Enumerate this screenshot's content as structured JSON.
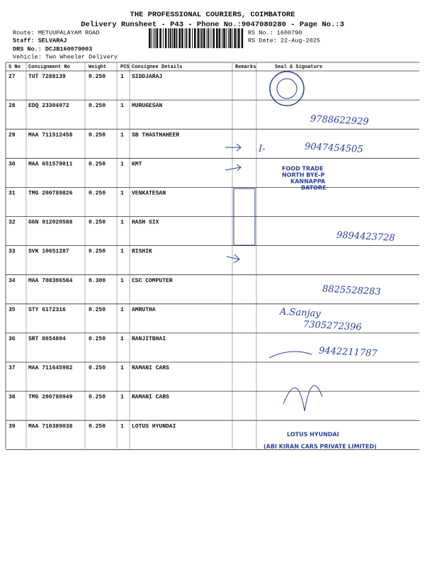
{
  "header": {
    "title": "THE PROFESSIONAL COURIERS, COIMBATORE",
    "subtitle": "Delivery Runsheet - P43 - Phone No.:9047080280 - Page No.:3",
    "route": "Route: METUUPALAYAM ROAD",
    "staff": "Staff: SELVARAJ",
    "drs_no": "DRS No.: DCJB160079003",
    "vehicle": "Vehicle: Two Wheeler Delivery",
    "rs_no": "RS No.: 1600790",
    "rs_date": "RS Date: 22-Aug-2025"
  },
  "table": {
    "columns": [
      "S No",
      "Consignment No",
      "Weight",
      "PCS",
      "Consignee Details",
      "Remarks",
      "Seal & Signature"
    ],
    "rows": [
      [
        "27",
        "TUT 7288139",
        "0.250",
        "1",
        "SIDDJARAJ"
      ],
      [
        "28",
        "EDQ 23304972",
        "0.250",
        "1",
        "MURUGESAN"
      ],
      [
        "29",
        "MAA 711512458",
        "0.250",
        "1",
        "SB THASTHAHEER"
      ],
      [
        "30",
        "MAA 651579011",
        "0.250",
        "1",
        "KMT"
      ],
      [
        "31",
        "TMG 200789826",
        "0.250",
        "1",
        "VENKATESAN"
      ],
      [
        "32",
        "GGN 912020588",
        "0.250",
        "1",
        "HASH SIX"
      ],
      [
        "33",
        "SVK 10651287",
        "0.250",
        "1",
        "RISHIK"
      ],
      [
        "34",
        "MAA 708306584",
        "0.300",
        "1",
        "CSC COMPUTER"
      ],
      [
        "35",
        "STY 6172316",
        "0.250",
        "1",
        "AMRUTHA"
      ],
      [
        "36",
        "SRT 8654804",
        "0.250",
        "1",
        "RANJITBHAI"
      ],
      [
        "37",
        "MAA 711645982",
        "0.250",
        "1",
        "RAMANI CARS"
      ],
      [
        "38",
        "TMG 200780949",
        "0.250",
        "1",
        "RAMANI CARS"
      ],
      [
        "39",
        "MAA 710389038",
        "0.250",
        "1",
        "LOTUS HYUNDAI"
      ]
    ]
  },
  "handwritten": [
    "9788622929",
    "I-",
    "9047454505",
    "FOOD TRADE",
    "NORTH BYE-P",
    "KANNAPPA",
    "BATORE",
    "9894423728",
    "8825528283",
    "A.Sanjay",
    "7305272396",
    "9442211787",
    "LOTUS HYUNDAI",
    "(ABI KIRAN CARS PRIVATE LIMITED)"
  ]
}
